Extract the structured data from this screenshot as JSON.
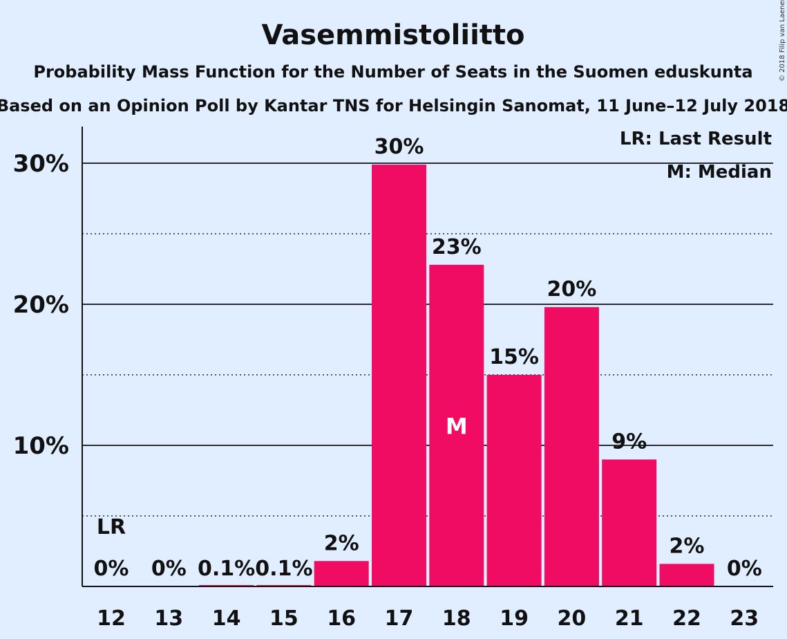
{
  "chart_data": {
    "type": "bar",
    "title": "Vasemmistoliitto",
    "subtitle": "Probability Mass Function for the Number of Seats in the Suomen eduskunta",
    "subtitle2": "Based on an Opinion Poll by Kantar TNS for Helsingin Sanomat, 11 June–12 July 2018",
    "categories": [
      "12",
      "13",
      "14",
      "15",
      "16",
      "17",
      "18",
      "19",
      "20",
      "21",
      "22",
      "23"
    ],
    "values": [
      0,
      0,
      0.1,
      0.1,
      1.8,
      29.9,
      22.8,
      15.0,
      19.8,
      9.0,
      1.6,
      0
    ],
    "value_labels": [
      "0%",
      "0%",
      "0.1%",
      "0.1%",
      "2%",
      "30%",
      "23%",
      "15%",
      "20%",
      "9%",
      "2%",
      "0%"
    ],
    "ylim": [
      0,
      32.5
    ],
    "yticks": [
      10,
      20,
      30
    ],
    "ytick_labels": [
      "10%",
      "20%",
      "30%"
    ],
    "minor_gridlines": [
      5,
      15,
      25
    ],
    "bar_color": "#f00c62",
    "last_result": {
      "category": "12",
      "label": "LR"
    },
    "median": {
      "category": "18",
      "label": "M"
    },
    "legend": {
      "position": "top-right",
      "lines": [
        "LR: Last Result",
        "M: Median"
      ]
    },
    "copyright": "© 2018 Filip van Laenen"
  }
}
